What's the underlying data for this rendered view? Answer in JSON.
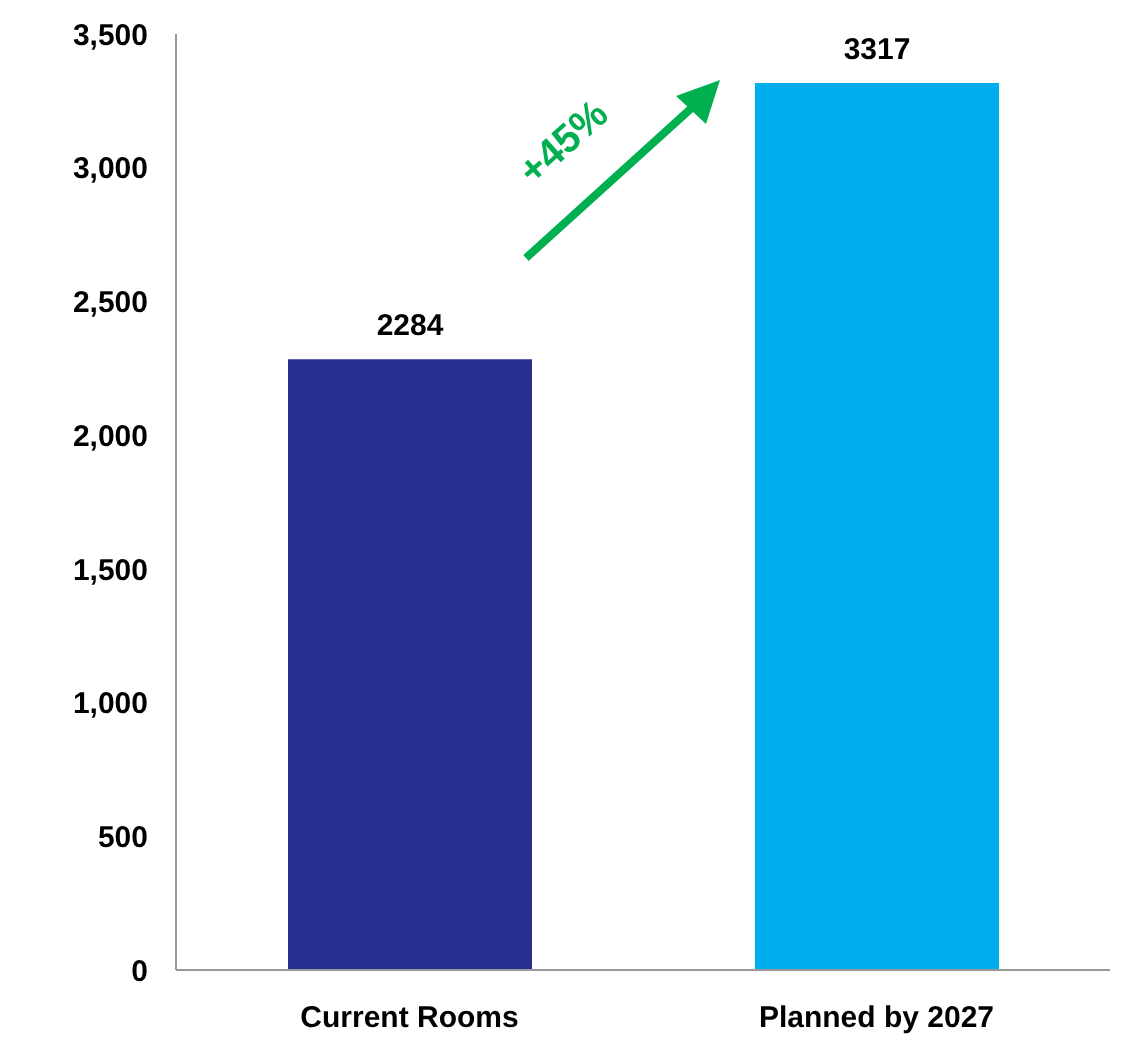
{
  "chart_data": {
    "type": "bar",
    "categories": [
      "Current Rooms",
      "Planned by 2027"
    ],
    "values": [
      2284,
      3317
    ],
    "colors": [
      "#29308f",
      "#00aeef"
    ],
    "ylim": [
      0,
      3500
    ],
    "yticks": [
      0,
      {
        "value": 500,
        "label": "500"
      },
      {
        "value": 1000,
        "label": "1,000"
      },
      {
        "value": 1500,
        "label": "1,500"
      },
      {
        "value": 2000,
        "label": "2,000"
      },
      {
        "value": 2500,
        "label": "2,500"
      },
      {
        "value": 3000,
        "label": "3,000"
      },
      {
        "value": 3500,
        "label": "3,500"
      }
    ],
    "data_labels": true,
    "annotations": [
      "+45%"
    ]
  }
}
